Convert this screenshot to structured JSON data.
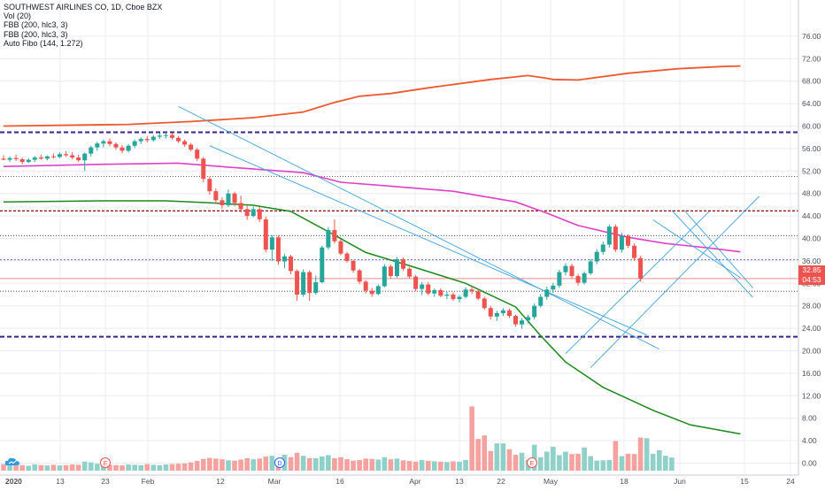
{
  "legend": {
    "symbol_line": "SOUTHWEST AIRLINES CO, 1D, Cboe BZX",
    "vol": "Vol (20)",
    "fbb1": "FBB (200, hlc3, 3)",
    "fbb2": "FBB (200, hlc3, 3)",
    "fibo": "Auto Fibo (144, 1.272)"
  },
  "price_labels": {
    "last": "32.85",
    "countdown": "04:53"
  },
  "colors": {
    "up": "#26a69a",
    "down": "#ef5350",
    "upper_band": "#f0592f",
    "mid_band": "#e040c8",
    "lower_band": "#1b8a1b",
    "trend": "#3ea3e0",
    "fibo_strong": "#3d1f8f",
    "fibo_red": "#8b0000",
    "grid": "#e9ecf1"
  },
  "chart_data": {
    "type": "candlestick",
    "y_axis": {
      "ylim": [
        -1.5,
        78
      ],
      "ticks": [
        "76.00",
        "72.00",
        "68.00",
        "64.00",
        "60.00",
        "56.00",
        "52.00",
        "48.00",
        "44.00",
        "40.00",
        "36.00",
        "32.00",
        "28.00",
        "24.00",
        "20.00",
        "16.00",
        "12.00",
        "8.00",
        "4.00",
        "0.00"
      ]
    },
    "x_axis": {
      "tick_labels": [
        "2020",
        "13",
        "23",
        "Feb",
        "12",
        "Mar",
        "16",
        "Apr",
        "13",
        "22",
        "May",
        "18",
        "Jun",
        "15",
        "24"
      ]
    },
    "event_markers": [
      "E",
      "D",
      "E"
    ],
    "candles": [
      {
        "o": 54.2,
        "h": 54.8,
        "l": 53.9,
        "c": 54.0
      },
      {
        "o": 54.0,
        "h": 54.6,
        "l": 53.6,
        "c": 54.3
      },
      {
        "o": 54.3,
        "h": 54.9,
        "l": 53.8,
        "c": 54.1
      },
      {
        "o": 54.1,
        "h": 54.4,
        "l": 53.2,
        "c": 53.6
      },
      {
        "o": 53.6,
        "h": 54.3,
        "l": 53.4,
        "c": 54.0
      },
      {
        "o": 54.0,
        "h": 54.7,
        "l": 53.6,
        "c": 54.4
      },
      {
        "o": 54.4,
        "h": 54.9,
        "l": 54.0,
        "c": 54.2
      },
      {
        "o": 54.2,
        "h": 54.8,
        "l": 53.9,
        "c": 54.6
      },
      {
        "o": 54.6,
        "h": 55.1,
        "l": 54.2,
        "c": 54.5
      },
      {
        "o": 54.5,
        "h": 55.3,
        "l": 54.3,
        "c": 55.0
      },
      {
        "o": 55.0,
        "h": 55.5,
        "l": 54.5,
        "c": 54.8
      },
      {
        "o": 54.8,
        "h": 55.4,
        "l": 54.1,
        "c": 54.4
      },
      {
        "o": 54.4,
        "h": 54.9,
        "l": 53.6,
        "c": 53.9
      },
      {
        "o": 53.9,
        "h": 55.3,
        "l": 52.0,
        "c": 55.1
      },
      {
        "o": 55.1,
        "h": 56.5,
        "l": 54.6,
        "c": 56.2
      },
      {
        "o": 56.2,
        "h": 57.2,
        "l": 55.6,
        "c": 56.9
      },
      {
        "o": 56.9,
        "h": 57.6,
        "l": 56.2,
        "c": 57.3
      },
      {
        "o": 57.3,
        "h": 57.8,
        "l": 56.4,
        "c": 56.8
      },
      {
        "o": 56.8,
        "h": 57.1,
        "l": 55.8,
        "c": 56.2
      },
      {
        "o": 56.2,
        "h": 56.6,
        "l": 55.2,
        "c": 55.6
      },
      {
        "o": 55.6,
        "h": 56.8,
        "l": 55.3,
        "c": 56.5
      },
      {
        "o": 56.5,
        "h": 57.6,
        "l": 56.1,
        "c": 57.3
      },
      {
        "o": 57.3,
        "h": 58.0,
        "l": 56.8,
        "c": 57.7
      },
      {
        "o": 57.7,
        "h": 58.2,
        "l": 57.1,
        "c": 57.5
      },
      {
        "o": 57.5,
        "h": 58.4,
        "l": 57.2,
        "c": 58.1
      },
      {
        "o": 58.1,
        "h": 58.7,
        "l": 57.7,
        "c": 58.3
      },
      {
        "o": 58.3,
        "h": 58.9,
        "l": 57.8,
        "c": 58.4
      },
      {
        "o": 58.4,
        "h": 58.8,
        "l": 57.6,
        "c": 57.9
      },
      {
        "o": 57.9,
        "h": 58.2,
        "l": 57.0,
        "c": 57.3
      },
      {
        "o": 57.3,
        "h": 57.6,
        "l": 56.3,
        "c": 56.7
      },
      {
        "o": 56.7,
        "h": 57.0,
        "l": 55.5,
        "c": 55.8
      },
      {
        "o": 55.8,
        "h": 56.1,
        "l": 53.8,
        "c": 54.2
      },
      {
        "o": 54.2,
        "h": 54.5,
        "l": 50.0,
        "c": 50.6
      },
      {
        "o": 50.6,
        "h": 51.0,
        "l": 47.8,
        "c": 48.4
      },
      {
        "o": 48.4,
        "h": 48.9,
        "l": 46.2,
        "c": 46.8
      },
      {
        "o": 46.8,
        "h": 47.3,
        "l": 45.3,
        "c": 45.9
      },
      {
        "o": 45.9,
        "h": 48.7,
        "l": 45.6,
        "c": 48.0
      },
      {
        "o": 48.0,
        "h": 48.3,
        "l": 45.7,
        "c": 46.3
      },
      {
        "o": 46.3,
        "h": 47.6,
        "l": 44.6,
        "c": 45.2
      },
      {
        "o": 45.2,
        "h": 45.8,
        "l": 43.3,
        "c": 44.0
      },
      {
        "o": 44.0,
        "h": 45.7,
        "l": 43.8,
        "c": 45.2
      },
      {
        "o": 45.2,
        "h": 45.6,
        "l": 42.9,
        "c": 43.4
      },
      {
        "o": 43.4,
        "h": 43.9,
        "l": 37.5,
        "c": 38.0
      },
      {
        "o": 38.0,
        "h": 40.6,
        "l": 36.0,
        "c": 40.2
      },
      {
        "o": 40.2,
        "h": 40.5,
        "l": 35.3,
        "c": 35.9
      },
      {
        "o": 35.9,
        "h": 37.2,
        "l": 34.7,
        "c": 36.8
      },
      {
        "o": 36.8,
        "h": 37.1,
        "l": 33.6,
        "c": 34.2
      },
      {
        "o": 34.2,
        "h": 34.5,
        "l": 28.9,
        "c": 30.0
      },
      {
        "o": 30.0,
        "h": 34.5,
        "l": 29.6,
        "c": 34.0
      },
      {
        "o": 34.0,
        "h": 34.3,
        "l": 28.9,
        "c": 30.3
      },
      {
        "o": 30.3,
        "h": 33.4,
        "l": 30.0,
        "c": 32.2
      },
      {
        "o": 32.2,
        "h": 38.7,
        "l": 32.0,
        "c": 38.4
      },
      {
        "o": 38.4,
        "h": 42.0,
        "l": 38.0,
        "c": 41.5
      },
      {
        "o": 41.5,
        "h": 43.4,
        "l": 39.1,
        "c": 39.5
      },
      {
        "o": 39.5,
        "h": 39.9,
        "l": 37.0,
        "c": 37.3
      },
      {
        "o": 37.3,
        "h": 37.6,
        "l": 35.7,
        "c": 36.0
      },
      {
        "o": 36.0,
        "h": 36.2,
        "l": 33.9,
        "c": 34.3
      },
      {
        "o": 34.3,
        "h": 34.6,
        "l": 31.9,
        "c": 32.3
      },
      {
        "o": 32.3,
        "h": 32.6,
        "l": 30.2,
        "c": 30.7
      },
      {
        "o": 30.7,
        "h": 31.2,
        "l": 29.6,
        "c": 30.1
      },
      {
        "o": 30.1,
        "h": 31.8,
        "l": 29.9,
        "c": 31.5
      },
      {
        "o": 31.5,
        "h": 35.4,
        "l": 31.3,
        "c": 35.0
      },
      {
        "o": 35.0,
        "h": 35.3,
        "l": 32.9,
        "c": 33.3
      },
      {
        "o": 33.3,
        "h": 36.7,
        "l": 33.0,
        "c": 36.3
      },
      {
        "o": 36.3,
        "h": 36.6,
        "l": 34.2,
        "c": 34.6
      },
      {
        "o": 34.6,
        "h": 34.9,
        "l": 32.9,
        "c": 33.2
      },
      {
        "o": 33.2,
        "h": 33.5,
        "l": 30.6,
        "c": 31.0
      },
      {
        "o": 31.0,
        "h": 32.2,
        "l": 29.9,
        "c": 31.8
      },
      {
        "o": 31.8,
        "h": 32.2,
        "l": 29.9,
        "c": 30.2
      },
      {
        "o": 30.2,
        "h": 31.1,
        "l": 29.6,
        "c": 30.8
      },
      {
        "o": 30.8,
        "h": 31.1,
        "l": 29.5,
        "c": 29.8
      },
      {
        "o": 29.8,
        "h": 30.5,
        "l": 29.2,
        "c": 30.0
      },
      {
        "o": 30.0,
        "h": 30.4,
        "l": 28.9,
        "c": 29.2
      },
      {
        "o": 29.2,
        "h": 29.9,
        "l": 28.6,
        "c": 29.6
      },
      {
        "o": 29.6,
        "h": 31.3,
        "l": 29.3,
        "c": 30.9
      },
      {
        "o": 30.9,
        "h": 31.6,
        "l": 30.1,
        "c": 30.6
      },
      {
        "o": 30.6,
        "h": 30.9,
        "l": 29.0,
        "c": 29.3
      },
      {
        "o": 29.3,
        "h": 29.6,
        "l": 27.3,
        "c": 27.6
      },
      {
        "o": 27.6,
        "h": 28.0,
        "l": 25.6,
        "c": 26.1
      },
      {
        "o": 26.1,
        "h": 27.1,
        "l": 25.3,
        "c": 26.7
      },
      {
        "o": 26.7,
        "h": 27.6,
        "l": 26.2,
        "c": 27.2
      },
      {
        "o": 27.2,
        "h": 27.5,
        "l": 25.8,
        "c": 26.2
      },
      {
        "o": 26.2,
        "h": 26.4,
        "l": 24.3,
        "c": 24.7
      },
      {
        "o": 24.7,
        "h": 25.8,
        "l": 23.9,
        "c": 25.4
      },
      {
        "o": 25.4,
        "h": 26.4,
        "l": 24.9,
        "c": 26.0
      },
      {
        "o": 26.0,
        "h": 28.4,
        "l": 25.6,
        "c": 28.0
      },
      {
        "o": 28.0,
        "h": 30.1,
        "l": 27.7,
        "c": 29.6
      },
      {
        "o": 29.6,
        "h": 31.4,
        "l": 29.1,
        "c": 30.9
      },
      {
        "o": 30.9,
        "h": 32.1,
        "l": 30.3,
        "c": 31.6
      },
      {
        "o": 31.6,
        "h": 34.4,
        "l": 31.2,
        "c": 34.0
      },
      {
        "o": 34.0,
        "h": 35.6,
        "l": 33.4,
        "c": 35.1
      },
      {
        "o": 35.1,
        "h": 35.5,
        "l": 32.9,
        "c": 33.3
      },
      {
        "o": 33.3,
        "h": 33.7,
        "l": 31.6,
        "c": 32.1
      },
      {
        "o": 32.1,
        "h": 34.1,
        "l": 31.8,
        "c": 33.8
      },
      {
        "o": 33.8,
        "h": 36.3,
        "l": 33.5,
        "c": 35.9
      },
      {
        "o": 35.9,
        "h": 38.1,
        "l": 35.4,
        "c": 37.6
      },
      {
        "o": 37.6,
        "h": 39.4,
        "l": 37.1,
        "c": 38.9
      },
      {
        "o": 38.9,
        "h": 42.5,
        "l": 38.4,
        "c": 42.1
      },
      {
        "o": 42.1,
        "h": 42.5,
        "l": 37.6,
        "c": 38.0
      },
      {
        "o": 38.0,
        "h": 41.0,
        "l": 37.5,
        "c": 40.4
      },
      {
        "o": 40.4,
        "h": 40.7,
        "l": 38.3,
        "c": 38.7
      },
      {
        "o": 38.7,
        "h": 39.1,
        "l": 36.0,
        "c": 36.5
      },
      {
        "o": 36.5,
        "h": 36.9,
        "l": 32.3,
        "c": 32.85
      }
    ],
    "volume": [
      1.9,
      1.7,
      1.5,
      1.6,
      1.4,
      1.8,
      1.6,
      1.5,
      1.7,
      1.5,
      1.6,
      1.8,
      1.7,
      2.6,
      2.4,
      2.0,
      1.9,
      1.7,
      1.6,
      1.5,
      1.8,
      1.7,
      1.6,
      1.9,
      1.7,
      1.6,
      1.8,
      1.9,
      2.0,
      2.1,
      2.4,
      2.8,
      3.4,
      3.7,
      3.5,
      3.3,
      3.0,
      2.9,
      3.2,
      3.6,
      3.3,
      3.5,
      4.1,
      4.3,
      3.5,
      4.6,
      3.9,
      5.2,
      4.3,
      3.6,
      3.6,
      4.1,
      4.5,
      3.6,
      3.9,
      3.3,
      2.9,
      3.1,
      3.5,
      3.4,
      3.2,
      3.9,
      3.3,
      3.5,
      3.0,
      2.8,
      2.6,
      3.1,
      2.8,
      2.7,
      2.6,
      2.5,
      2.7,
      2.6,
      3.1,
      18.6,
      9.2,
      10.2,
      5.7,
      7.9,
      7.9,
      6.2,
      4.6,
      5.2,
      3.1,
      7.5,
      3.9,
      5.5,
      6.9,
      4.5,
      5.5,
      4.8,
      4.9,
      6.7,
      4.2,
      2.9,
      3.0,
      3.1,
      8.6,
      4.2,
      4.9,
      4.8,
      9.6,
      9.4,
      4.9,
      5.9,
      4.3,
      3.8
    ],
    "upper_band": [
      [
        0,
        60.0
      ],
      [
        20,
        60.3
      ],
      [
        30,
        60.8
      ],
      [
        40,
        61.5
      ],
      [
        48,
        62.5
      ],
      [
        53,
        64.2
      ],
      [
        57,
        65.3
      ],
      [
        62,
        65.8
      ],
      [
        68,
        66.8
      ],
      [
        78,
        68.3
      ],
      [
        84,
        69.0
      ],
      [
        87,
        68.5
      ],
      [
        88,
        68.3
      ],
      [
        92,
        68.2
      ],
      [
        100,
        69.4
      ],
      [
        108,
        70.2
      ],
      [
        115,
        70.6
      ],
      [
        118,
        70.7
      ]
    ],
    "mid_band": [
      [
        0,
        52.8
      ],
      [
        16,
        53.2
      ],
      [
        28,
        53.4
      ],
      [
        36,
        52.7
      ],
      [
        48,
        51.7
      ],
      [
        54,
        50.0
      ],
      [
        62,
        49.3
      ],
      [
        72,
        48.4
      ],
      [
        82,
        46.5
      ],
      [
        87,
        44.5
      ],
      [
        92,
        42.3
      ],
      [
        100,
        40.2
      ],
      [
        106,
        39.1
      ],
      [
        113,
        38.3
      ],
      [
        118,
        37.6
      ]
    ],
    "lower_band": [
      [
        0,
        46.5
      ],
      [
        16,
        46.7
      ],
      [
        26,
        46.7
      ],
      [
        32,
        46.4
      ],
      [
        40,
        45.9
      ],
      [
        46,
        44.8
      ],
      [
        52,
        41.2
      ],
      [
        58,
        37.5
      ],
      [
        66,
        34.8
      ],
      [
        74,
        32.0
      ],
      [
        82,
        27.8
      ],
      [
        86,
        22.7
      ],
      [
        90,
        18.0
      ],
      [
        96,
        13.5
      ],
      [
        104,
        9.4
      ],
      [
        110,
        6.8
      ],
      [
        118,
        5.2
      ]
    ],
    "fibo_levels": [
      {
        "price": 58.9,
        "style": "strong"
      },
      {
        "price": 51.0,
        "style": "dotted"
      },
      {
        "price": 44.9,
        "style": "red"
      },
      {
        "price": 40.5,
        "style": "dotted"
      },
      {
        "price": 36.2,
        "style": "blue"
      },
      {
        "price": 32.85,
        "style": "last"
      },
      {
        "price": 30.6,
        "style": "dotted"
      },
      {
        "price": 22.5,
        "style": "strong"
      }
    ]
  }
}
